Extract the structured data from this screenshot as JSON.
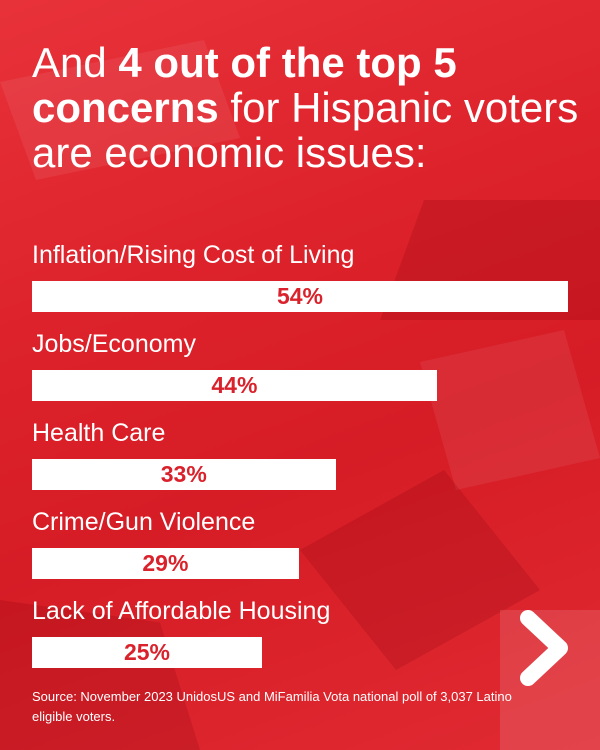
{
  "title": {
    "pre": "And ",
    "bold": "4 out of the top 5 concerns",
    "post": " for Hispanic voters are economic issues:"
  },
  "chart_data": {
    "type": "bar",
    "orientation": "horizontal",
    "title": "And 4 out of the top 5 concerns for Hispanic voters are economic issues:",
    "categories": [
      "Inflation/Rising Cost of Living",
      "Jobs/Economy",
      "Health Care",
      "Crime/Gun Violence",
      "Lack of Affordable Housing"
    ],
    "values": [
      54,
      44,
      33,
      29,
      25
    ],
    "value_labels": [
      "54%",
      "44%",
      "33%",
      "29%",
      "25%"
    ],
    "xlabel": "",
    "ylabel": "",
    "xlim": [
      0,
      58
    ],
    "colors": {
      "bar": "#ffffff",
      "label": "#d9222b",
      "background": "#dd222b"
    }
  },
  "source": "Source: November 2023 UnidosUS and MiFamilia Vota national poll of 3,037 Latino eligible voters.",
  "next_icon": "chevron-right-icon"
}
